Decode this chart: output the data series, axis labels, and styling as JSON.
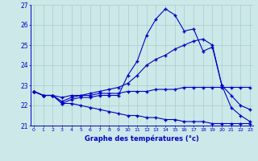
{
  "hours": [
    0,
    1,
    2,
    3,
    4,
    5,
    6,
    7,
    8,
    9,
    10,
    11,
    12,
    13,
    14,
    15,
    16,
    17,
    18,
    19,
    20,
    21,
    22,
    23
  ],
  "line_max": [
    22.7,
    22.5,
    22.5,
    22.1,
    22.3,
    22.4,
    22.4,
    22.5,
    22.5,
    22.5,
    23.5,
    24.2,
    25.5,
    26.3,
    26.8,
    26.5,
    25.7,
    25.8,
    24.7,
    24.9,
    23.0,
    21.9,
    21.5,
    21.2
  ],
  "line_cur": [
    22.7,
    22.5,
    22.5,
    22.2,
    22.4,
    22.5,
    22.6,
    22.7,
    22.8,
    22.9,
    23.1,
    23.5,
    24.0,
    24.3,
    24.5,
    24.8,
    25.0,
    25.2,
    25.3,
    25.0,
    23.0,
    22.5,
    22.0,
    21.8
  ],
  "line_mean": [
    22.7,
    22.5,
    22.5,
    22.4,
    22.5,
    22.5,
    22.5,
    22.6,
    22.6,
    22.6,
    22.7,
    22.7,
    22.7,
    22.8,
    22.8,
    22.8,
    22.9,
    22.9,
    22.9,
    22.9,
    22.9,
    22.9,
    22.9,
    22.9
  ],
  "line_min": [
    22.7,
    22.5,
    22.5,
    22.1,
    22.1,
    22.0,
    21.9,
    21.8,
    21.7,
    21.6,
    21.5,
    21.5,
    21.4,
    21.4,
    21.3,
    21.3,
    21.2,
    21.2,
    21.2,
    21.1,
    21.1,
    21.1,
    21.1,
    21.1
  ],
  "ylim": [
    21.0,
    27.0
  ],
  "yticks": [
    21,
    22,
    23,
    24,
    25,
    26,
    27
  ],
  "xlim": [
    0,
    23
  ],
  "xticks": [
    0,
    1,
    2,
    3,
    4,
    5,
    6,
    7,
    8,
    9,
    10,
    11,
    12,
    13,
    14,
    15,
    16,
    17,
    18,
    19,
    20,
    21,
    22,
    23
  ],
  "line_color": "#0000cc",
  "bg_color": "#cce8e8",
  "grid_color": "#aacccc",
  "xlabel": "Graphe des températures (°c)",
  "marker": "+",
  "marker_size": 3.0,
  "linewidth": 0.8
}
